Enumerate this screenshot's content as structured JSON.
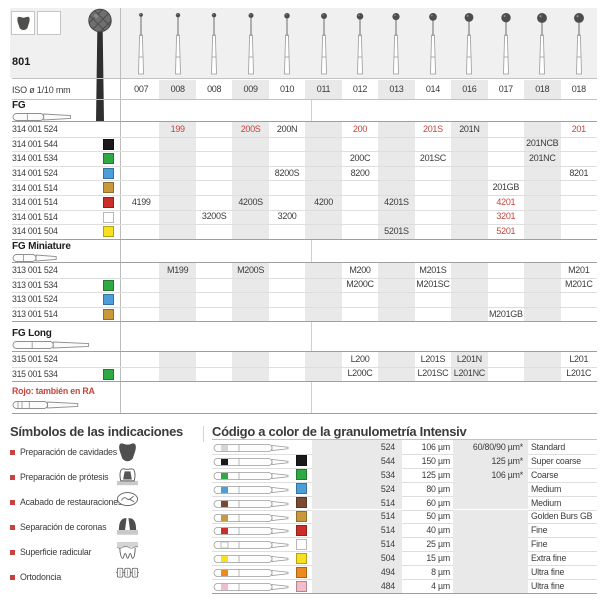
{
  "page_accent": "#c5443d",
  "top_table": {
    "figure_label": "801",
    "iso_label": "ISO ø 1/10 mm",
    "iso_sizes": [
      "007",
      "008",
      "008",
      "009",
      "010",
      "011",
      "012",
      "013",
      "014",
      "016",
      "017",
      "018",
      "018"
    ],
    "header_indication_icons": [
      "cavity-prep-icon",
      "finishing-icon"
    ],
    "note": "Rojo: también en RA",
    "sections": [
      {
        "label": "FG",
        "shank_icon": "fg-bur-icon",
        "rows": [
          {
            "code": "314 001 524",
            "swatch": null,
            "cells": [
              {
                "col": 2,
                "t": "199",
                "red": true
              },
              {
                "col": 4,
                "t": "200S",
                "red": true
              },
              {
                "col": 5,
                "t": "200N"
              },
              {
                "col": 7,
                "t": "200",
                "red": true
              },
              {
                "col": 9,
                "t": "201S",
                "red": true
              },
              {
                "col": 10,
                "t": "201N"
              },
              {
                "col": 13,
                "t": "201",
                "red": true
              }
            ]
          },
          {
            "code": "314 001 544",
            "swatch": "black",
            "cells": [
              {
                "col": 12,
                "t": "201NCB"
              }
            ]
          },
          {
            "code": "314 001 534",
            "swatch": "green",
            "cells": [
              {
                "col": 7,
                "t": "200C"
              },
              {
                "col": 9,
                "t": "201SC"
              },
              {
                "col": 12,
                "t": "201NC"
              }
            ]
          },
          {
            "code": "314 001 524",
            "swatch": "blue",
            "cells": [
              {
                "col": 5,
                "t": "8200S"
              },
              {
                "col": 7,
                "t": "8200"
              },
              {
                "col": 13,
                "t": "8201"
              }
            ]
          },
          {
            "code": "314 001 514",
            "swatch": "gold",
            "cells": [
              {
                "col": 11,
                "t": "201GB"
              }
            ]
          },
          {
            "code": "314 001 514",
            "swatch": "red",
            "cells": [
              {
                "col": 1,
                "t": "4199"
              },
              {
                "col": 4,
                "t": "4200S"
              },
              {
                "col": 6,
                "t": "4200"
              },
              {
                "col": 8,
                "t": "4201S"
              },
              {
                "col": 11,
                "t": "4201",
                "red": true
              }
            ]
          },
          {
            "code": "314 001 514",
            "swatch": "white",
            "cells": [
              {
                "col": 3,
                "t": "3200S"
              },
              {
                "col": 5,
                "t": "3200"
              },
              {
                "col": 11,
                "t": "3201",
                "red": true
              }
            ]
          },
          {
            "code": "314 001 504",
            "swatch": "yellow",
            "cells": [
              {
                "col": 8,
                "t": "5201S"
              },
              {
                "col": 11,
                "t": "5201",
                "red": true
              }
            ]
          }
        ]
      },
      {
        "label": "FG Miniature",
        "shank_icon": "fg-miniature-bur-icon",
        "rows": [
          {
            "code": "313 001 524",
            "swatch": null,
            "cells": [
              {
                "col": 2,
                "t": "M199"
              },
              {
                "col": 4,
                "t": "M200S"
              },
              {
                "col": 7,
                "t": "M200"
              },
              {
                "col": 9,
                "t": "M201S"
              },
              {
                "col": 13,
                "t": "M201"
              }
            ]
          },
          {
            "code": "313 001 534",
            "swatch": "green",
            "cells": [
              {
                "col": 7,
                "t": "M200C"
              },
              {
                "col": 9,
                "t": "M201SC"
              },
              {
                "col": 13,
                "t": "M201C"
              }
            ]
          },
          {
            "code": "313 001 524",
            "swatch": "blue",
            "cells": []
          },
          {
            "code": "313 001 514",
            "swatch": "gold",
            "cells": [
              {
                "col": 11,
                "t": "M201GB"
              }
            ]
          }
        ]
      },
      {
        "label": "FG Long",
        "shank_icon": "fg-long-bur-icon",
        "rows": [
          {
            "code": "315 001 524",
            "swatch": null,
            "cells": [
              {
                "col": 7,
                "t": "L200"
              },
              {
                "col": 9,
                "t": "L201S"
              },
              {
                "col": 10,
                "t": "L201N"
              },
              {
                "col": 13,
                "t": "L201"
              }
            ]
          },
          {
            "code": "315 001 534",
            "swatch": "green",
            "cells": [
              {
                "col": 7,
                "t": "L200C"
              },
              {
                "col": 9,
                "t": "L201SC"
              },
              {
                "col": 10,
                "t": "L201NC"
              },
              {
                "col": 13,
                "t": "L201C"
              }
            ]
          }
        ]
      }
    ]
  },
  "symbols": {
    "title": "Símbolos de las indicaciones",
    "items": [
      {
        "label": "Preparación de cavidades",
        "icon": "cavity-prep-icon"
      },
      {
        "label": "Preparación de prótesis",
        "icon": "prosthesis-prep-icon"
      },
      {
        "label": "Acabado de restauraciones",
        "icon": "restoration-finishing-icon"
      },
      {
        "label": "Separación de coronas",
        "icon": "crown-separation-icon"
      },
      {
        "label": "Superficie radicular",
        "icon": "root-surface-icon"
      },
      {
        "label": "Ortodoncia",
        "icon": "orthodontics-icon"
      }
    ]
  },
  "grit": {
    "title": "Código a color de la granulometría Intensiv",
    "rows": [
      {
        "color": null,
        "num": "524",
        "grain": "106 µm",
        "extra": "60/80/90 µm*",
        "name": "Standard"
      },
      {
        "color": "black",
        "num": "544",
        "grain": "150 µm",
        "extra": "125 µm*",
        "name": "Super coarse"
      },
      {
        "color": "green",
        "num": "534",
        "grain": "125 µm",
        "extra": "106 µm*",
        "name": "Coarse"
      },
      {
        "color": "blue",
        "num": "524",
        "grain": "80 µm",
        "extra": "",
        "name": "Medium"
      },
      {
        "color": "brown",
        "num": "514",
        "grain": "60 µm",
        "extra": "",
        "name": "Medium"
      },
      {
        "color": "gold",
        "num": "514",
        "grain": "50 µm",
        "extra": "",
        "name": "Golden Burs GB"
      },
      {
        "color": "red",
        "num": "514",
        "grain": "40 µm",
        "extra": "",
        "name": "Fine"
      },
      {
        "color": "white",
        "num": "514",
        "grain": "25 µm",
        "extra": "",
        "name": "Fine"
      },
      {
        "color": "yellow",
        "num": "504",
        "grain": "15 µm",
        "extra": "",
        "name": "Extra fine"
      },
      {
        "color": "orange",
        "num": "494",
        "grain": "8 µm",
        "extra": "",
        "name": "Ultra fine"
      },
      {
        "color": "pink",
        "num": "484",
        "grain": "4 µm",
        "extra": "",
        "name": "Ultra fine"
      }
    ]
  },
  "colors": {
    "black": "#1a1a1a",
    "green": "#2fa943",
    "blue": "#4a9ed9",
    "gold": "#c7993c",
    "red": "#cb2e28",
    "white": "#ffffff",
    "yellow": "#f8df1f",
    "brown": "#7b4b31",
    "orange": "#ee8a1d",
    "pink": "#f3bcca"
  }
}
